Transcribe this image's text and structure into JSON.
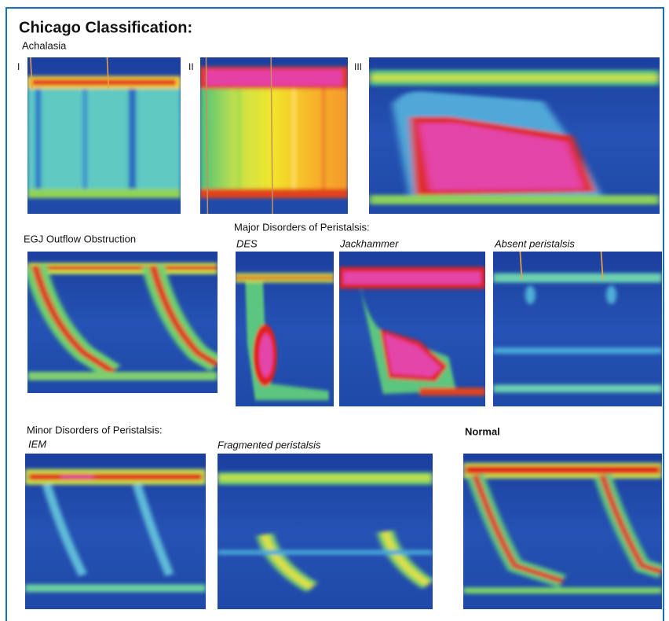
{
  "header": {
    "title": "Chicago Classification:"
  },
  "sections": [
    {
      "label": "Achalasia",
      "panels": [
        {
          "label": "I"
        },
        {
          "label": "II"
        },
        {
          "label": "III"
        }
      ]
    },
    {
      "label": "EGJ Outflow Obstruction"
    },
    {
      "label": "Major Disorders of Peristalsis:",
      "panels": [
        {
          "label": "DES"
        },
        {
          "label": "Jackhammer"
        },
        {
          "label": "Absent peristalsis"
        }
      ]
    },
    {
      "label": "Minor Disorders of Peristalsis:",
      "panels": [
        {
          "label": "IEM"
        },
        {
          "label": "Fragmented peristalsis"
        }
      ]
    },
    {
      "label": "Normal"
    }
  ]
}
